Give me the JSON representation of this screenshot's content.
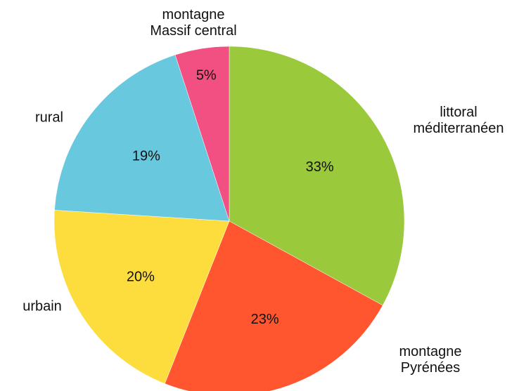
{
  "chart_data": {
    "type": "pie",
    "categories": [
      "littoral\nméditerranéen",
      "montagne Pyrénées",
      "urbain",
      "rural",
      "montagne\nMassif central"
    ],
    "values": [
      33,
      23,
      20,
      19,
      5
    ],
    "value_labels": [
      "33%",
      "23%",
      "20%",
      "19%",
      "5%"
    ],
    "colors": [
      "#9ac93b",
      "#ff5630",
      "#fddd3d",
      "#68c8de",
      "#f24f82"
    ]
  }
}
